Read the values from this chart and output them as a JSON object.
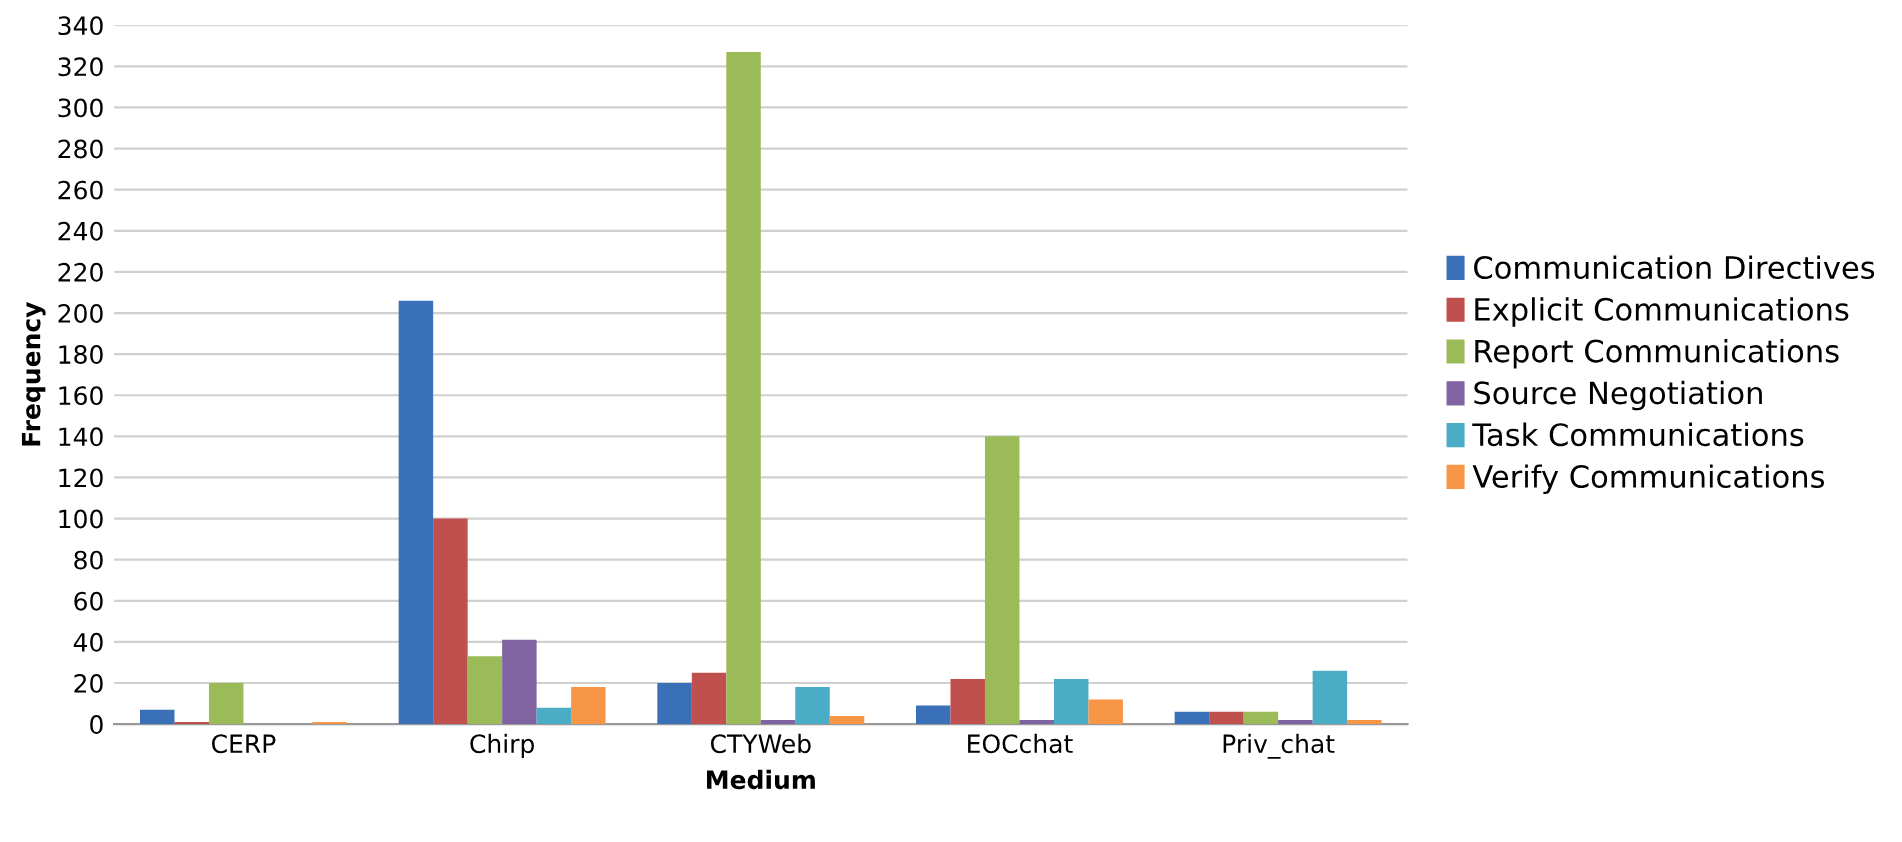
{
  "chart_data": {
    "type": "bar",
    "xlabel": "Medium",
    "ylabel": "Frequency",
    "categories": [
      "CERP",
      "Chirp",
      "CTYWeb",
      "EOCchat",
      "Priv_chat"
    ],
    "series": [
      {
        "name": "Communication Directives",
        "color": "#3a70b8",
        "values": [
          7,
          206,
          20,
          9,
          6
        ]
      },
      {
        "name": "Explicit Communications",
        "color": "#c0504d",
        "values": [
          1,
          100,
          25,
          22,
          6
        ]
      },
      {
        "name": "Report Communications",
        "color": "#9bbb59",
        "values": [
          20,
          33,
          327,
          140,
          6
        ]
      },
      {
        "name": "Source Negotiation",
        "color": "#8064a2",
        "values": [
          0,
          41,
          2,
          2,
          2
        ]
      },
      {
        "name": "Task Communications",
        "color": "#4bacc6",
        "values": [
          0,
          8,
          18,
          22,
          26
        ]
      },
      {
        "name": "Verify Communications",
        "color": "#f79646",
        "values": [
          1,
          18,
          4,
          12,
          2
        ]
      }
    ],
    "ylim": [
      0,
      340
    ],
    "yticks": [
      0,
      20,
      40,
      60,
      80,
      100,
      120,
      140,
      160,
      180,
      200,
      220,
      240,
      260,
      280,
      300,
      320,
      340
    ],
    "grid": "y",
    "legend": "right"
  }
}
